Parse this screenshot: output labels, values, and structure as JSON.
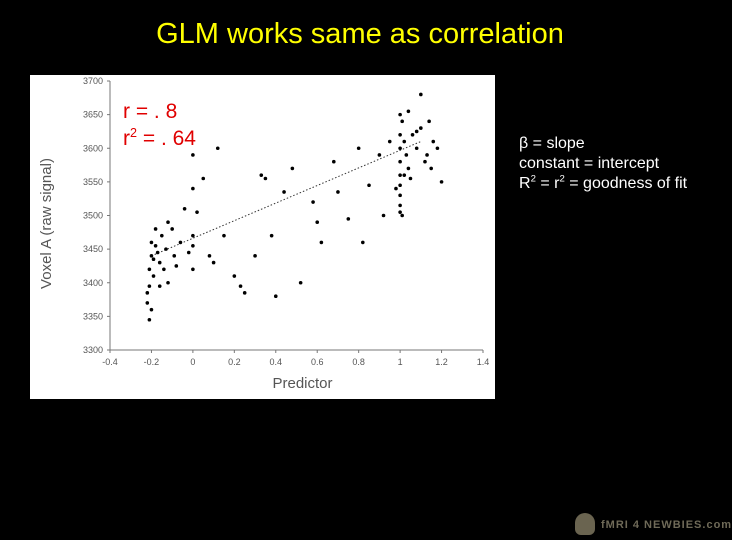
{
  "slide": {
    "title": "GLM works same as correlation",
    "stats": {
      "r_line": "r = . 8",
      "r2_prefix": "r",
      "r2_sup": "2",
      "r2_suffix": " = . 64"
    },
    "notes": {
      "slope_line": "β = slope",
      "intercept_line": "constant = intercept",
      "fit_prefix": "R",
      "fit_sup_1": "2",
      "fit_middle": " = r",
      "fit_sup_2": "2",
      "fit_suffix": " = goodness of fit"
    },
    "logo_text": "fMRI 4 NEWBIES.com",
    "colors": {
      "background": "#000000",
      "title": "#ffff00",
      "stats": "#e00000",
      "notes": "#ffffff"
    }
  },
  "chart_data": {
    "type": "scatter",
    "xlabel": "Predictor",
    "ylabel": "Voxel A (raw signal)",
    "xlim": [
      -0.4,
      1.4
    ],
    "ylim": [
      3300,
      3700
    ],
    "xticks": [
      "-0.4",
      "-0.2",
      "0",
      "0.2",
      "0.4",
      "0.6",
      "0.8",
      "1",
      "1.2",
      "1.4"
    ],
    "yticks": [
      "3300",
      "3350",
      "3400",
      "3450",
      "3500",
      "3550",
      "3600",
      "3650",
      "3700"
    ],
    "grid": false,
    "points": [
      [
        -0.22,
        3370
      ],
      [
        -0.22,
        3385
      ],
      [
        -0.21,
        3395
      ],
      [
        -0.21,
        3420
      ],
      [
        -0.2,
        3440
      ],
      [
        -0.2,
        3460
      ],
      [
        -0.19,
        3410
      ],
      [
        -0.19,
        3435
      ],
      [
        -0.18,
        3480
      ],
      [
        -0.18,
        3455
      ],
      [
        -0.17,
        3445
      ],
      [
        -0.16,
        3395
      ],
      [
        -0.16,
        3430
      ],
      [
        -0.15,
        3470
      ],
      [
        -0.14,
        3420
      ],
      [
        -0.13,
        3450
      ],
      [
        -0.12,
        3400
      ],
      [
        -0.12,
        3490
      ],
      [
        -0.2,
        3360
      ],
      [
        -0.21,
        3345
      ],
      [
        -0.1,
        3480
      ],
      [
        -0.09,
        3440
      ],
      [
        -0.08,
        3425
      ],
      [
        -0.06,
        3460
      ],
      [
        -0.04,
        3510
      ],
      [
        -0.02,
        3445
      ],
      [
        0.0,
        3470
      ],
      [
        0.0,
        3455
      ],
      [
        0.0,
        3540
      ],
      [
        0.0,
        3590
      ],
      [
        0.0,
        3420
      ],
      [
        0.02,
        3505
      ],
      [
        0.05,
        3555
      ],
      [
        0.08,
        3440
      ],
      [
        0.1,
        3430
      ],
      [
        0.12,
        3600
      ],
      [
        0.15,
        3470
      ],
      [
        0.2,
        3410
      ],
      [
        0.23,
        3395
      ],
      [
        0.25,
        3385
      ],
      [
        0.3,
        3440
      ],
      [
        0.33,
        3560
      ],
      [
        0.35,
        3555
      ],
      [
        0.38,
        3470
      ],
      [
        0.4,
        3380
      ],
      [
        0.44,
        3535
      ],
      [
        0.48,
        3570
      ],
      [
        0.52,
        3400
      ],
      [
        0.58,
        3520
      ],
      [
        0.6,
        3490
      ],
      [
        0.62,
        3460
      ],
      [
        0.68,
        3580
      ],
      [
        0.7,
        3535
      ],
      [
        0.75,
        3495
      ],
      [
        0.8,
        3600
      ],
      [
        0.82,
        3460
      ],
      [
        0.85,
        3545
      ],
      [
        0.9,
        3590
      ],
      [
        0.92,
        3500
      ],
      [
        0.95,
        3610
      ],
      [
        0.98,
        3540
      ],
      [
        1.0,
        3650
      ],
      [
        1.0,
        3620
      ],
      [
        1.0,
        3600
      ],
      [
        1.0,
        3580
      ],
      [
        1.0,
        3560
      ],
      [
        1.0,
        3545
      ],
      [
        1.0,
        3530
      ],
      [
        1.0,
        3515
      ],
      [
        1.0,
        3505
      ],
      [
        1.01,
        3640
      ],
      [
        1.02,
        3610
      ],
      [
        1.03,
        3590
      ],
      [
        1.04,
        3570
      ],
      [
        1.05,
        3555
      ],
      [
        1.06,
        3620
      ],
      [
        1.08,
        3600
      ],
      [
        1.1,
        3630
      ],
      [
        1.12,
        3580
      ],
      [
        1.14,
        3640
      ],
      [
        1.15,
        3570
      ],
      [
        1.16,
        3610
      ],
      [
        1.1,
        3680
      ],
      [
        1.18,
        3600
      ],
      [
        1.2,
        3550
      ],
      [
        1.04,
        3655
      ],
      [
        1.08,
        3625
      ],
      [
        1.13,
        3590
      ],
      [
        1.01,
        3500
      ],
      [
        1.02,
        3560
      ]
    ],
    "fit_line": {
      "from": [
        -0.2,
        3440
      ],
      "to": [
        1.1,
        3610
      ],
      "style": "dotted"
    }
  }
}
